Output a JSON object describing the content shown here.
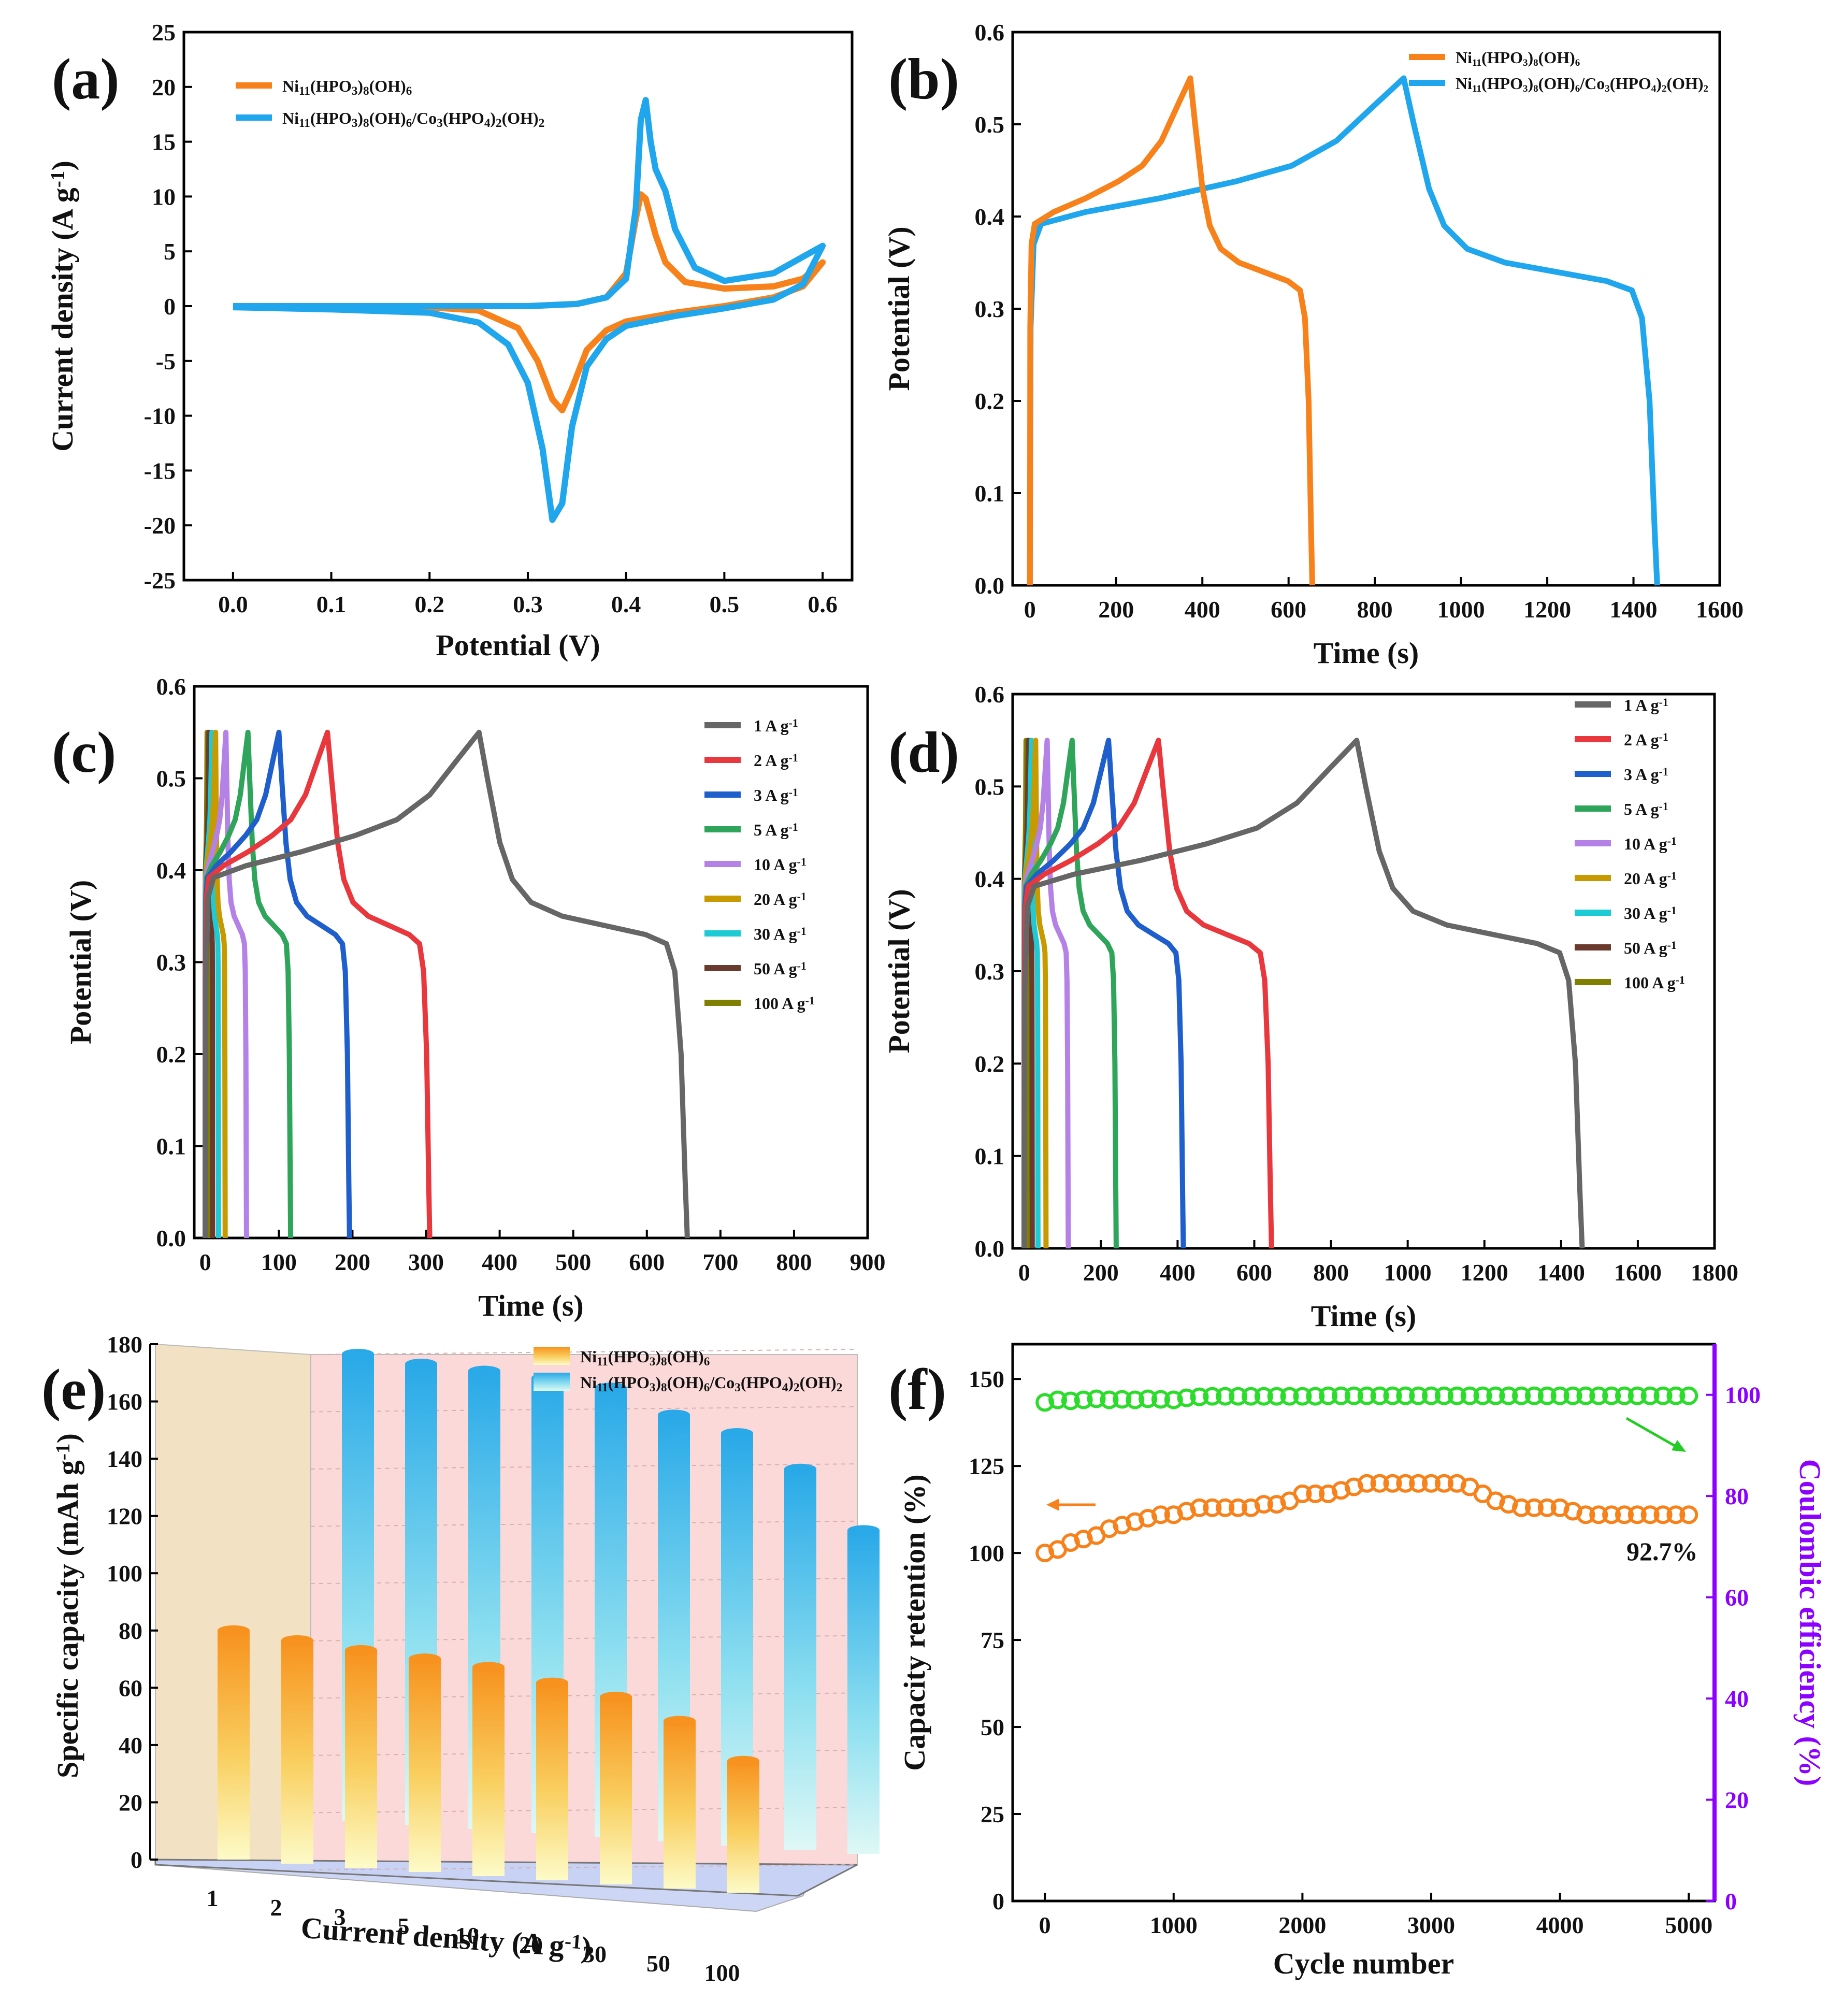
{
  "figure": {
    "panels": [
      {
        "id": "a",
        "label": "(a)"
      },
      {
        "id": "b",
        "label": "(b)"
      },
      {
        "id": "c",
        "label": "(c)"
      },
      {
        "id": "d",
        "label": "(d)"
      },
      {
        "id": "e",
        "label": "(e)"
      },
      {
        "id": "f",
        "label": "(f)"
      }
    ]
  },
  "chart_data": [
    {
      "panel": "a",
      "type": "line",
      "title": "",
      "xlabel": "Potential (V)",
      "ylabel": "Current density (A g⁻¹)",
      "xlim": [
        -0.05,
        0.63
      ],
      "ylim": [
        -25,
        25
      ],
      "xticks": [
        0.0,
        0.1,
        0.2,
        0.3,
        0.4,
        0.5,
        0.6
      ],
      "xtick_labels": [
        "0.0",
        "0.1",
        "0.2",
        "0.3",
        "0.4",
        "0.5",
        "0.6"
      ],
      "yticks": [
        -25,
        -20,
        -15,
        -10,
        -5,
        0,
        5,
        10,
        15,
        20,
        25
      ],
      "ytick_labels": [
        "-25",
        "-20",
        "-15",
        "-10",
        "-5",
        "0",
        "5",
        "10",
        "15",
        "20",
        "25"
      ],
      "legend": "top-left",
      "series": [
        {
          "name": "Ni₁₁(HPO₃)₈(OH)₆",
          "color": "#f7821b",
          "x": [
            0.0,
            0.1,
            0.2,
            0.25,
            0.29,
            0.31,
            0.325,
            0.335,
            0.345,
            0.36,
            0.38,
            0.4,
            0.45,
            0.5,
            0.55,
            0.58,
            0.6,
            0.58,
            0.55,
            0.5,
            0.46,
            0.44,
            0.43,
            0.42,
            0.415,
            0.41,
            0.4,
            0.38,
            0.35,
            0.3,
            0.25,
            0.2,
            0.1,
            0.0
          ],
          "y": [
            0,
            0,
            -0.1,
            -0.4,
            -2.0,
            -5.0,
            -8.5,
            -9.5,
            -7.5,
            -4.0,
            -2.2,
            -1.4,
            -0.6,
            0.0,
            0.8,
            1.8,
            4.0,
            2.5,
            1.8,
            1.6,
            2.2,
            4.0,
            6.5,
            9.8,
            10.2,
            8.0,
            3.0,
            0.8,
            0.2,
            0.0,
            0.0,
            0.0,
            0.0,
            0.0
          ]
        },
        {
          "name": "Ni₁₁(HPO₃)₈(OH)₆/Co₃(HPO₄)₂(OH)₂",
          "color": "#1fa6ec",
          "x": [
            0.0,
            0.1,
            0.2,
            0.25,
            0.28,
            0.3,
            0.315,
            0.325,
            0.335,
            0.345,
            0.36,
            0.38,
            0.4,
            0.45,
            0.5,
            0.55,
            0.58,
            0.6,
            0.58,
            0.55,
            0.5,
            0.47,
            0.45,
            0.44,
            0.43,
            0.425,
            0.42,
            0.415,
            0.41,
            0.4,
            0.38,
            0.35,
            0.3,
            0.25,
            0.2,
            0.1,
            0.0
          ],
          "y": [
            -0.1,
            -0.3,
            -0.6,
            -1.5,
            -3.5,
            -7.0,
            -13.0,
            -19.5,
            -18.0,
            -11.0,
            -5.5,
            -3.0,
            -1.8,
            -0.9,
            -0.2,
            0.6,
            2.0,
            5.5,
            4.5,
            3.0,
            2.3,
            3.5,
            7.0,
            10.5,
            12.5,
            15.0,
            18.8,
            17.0,
            9.0,
            2.5,
            0.8,
            0.2,
            0.0,
            0.0,
            0.0,
            0.0,
            0.0
          ]
        }
      ]
    },
    {
      "panel": "b",
      "type": "line",
      "title": "",
      "xlabel": "Time (s)",
      "ylabel": "Potential (V)",
      "xlim": [
        -40,
        1600
      ],
      "ylim": [
        0,
        0.6
      ],
      "xticks": [
        0,
        200,
        400,
        600,
        800,
        1000,
        1200,
        1400,
        1600
      ],
      "xtick_labels": [
        "0",
        "200",
        "400",
        "600",
        "800",
        "1000",
        "1200",
        "1400",
        "1600"
      ],
      "yticks": [
        0.0,
        0.1,
        0.2,
        0.3,
        0.4,
        0.5,
        0.6
      ],
      "ytick_labels": [
        "0.0",
        "0.1",
        "0.2",
        "0.3",
        "0.4",
        "0.5",
        "0.6"
      ],
      "legend": "top-right",
      "series": [
        {
          "name": "Ni₁₁(HPO₃)₈(OH)₆",
          "color": "#f7821b",
          "charge_end": 372,
          "discharge_end": 655
        },
        {
          "name": "Ni₁₁(HPO₃)₈(OH)₆/Co₃(HPO₄)₂(OH)₂",
          "color": "#1fa6ec",
          "charge_end": 867,
          "discharge_end": 1455
        }
      ]
    },
    {
      "panel": "c",
      "type": "line",
      "title": "",
      "xlabel": "Time (s)",
      "ylabel": "Potential (V)",
      "xlim": [
        -15,
        900
      ],
      "ylim": [
        0,
        0.6
      ],
      "xticks": [
        0,
        100,
        200,
        300,
        400,
        500,
        600,
        700,
        800,
        900
      ],
      "xtick_labels": [
        "0",
        "100",
        "200",
        "300",
        "400",
        "500",
        "600",
        "700",
        "800",
        "900"
      ],
      "yticks": [
        0.0,
        0.1,
        0.2,
        0.3,
        0.4,
        0.5,
        0.6
      ],
      "ytick_labels": [
        "0.0",
        "0.1",
        "0.2",
        "0.3",
        "0.4",
        "0.5",
        "0.6"
      ],
      "legend": "top-right",
      "series": [
        {
          "name": "1 A g⁻¹",
          "color": "#666666",
          "charge_end": 372,
          "discharge_end": 655
        },
        {
          "name": "2 A g⁻¹",
          "color": "#e8383d",
          "charge_end": 166,
          "discharge_end": 305
        },
        {
          "name": "3 A g⁻¹",
          "color": "#1f5fcc",
          "charge_end": 100,
          "discharge_end": 196
        },
        {
          "name": "5 A g⁻¹",
          "color": "#2ea55a",
          "charge_end": 58,
          "discharge_end": 116
        },
        {
          "name": "10 A g⁻¹",
          "color": "#b482e6",
          "charge_end": 28,
          "discharge_end": 56
        },
        {
          "name": "20 A g⁻¹",
          "color": "#c79a00",
          "charge_end": 14,
          "discharge_end": 27
        },
        {
          "name": "30 A g⁻¹",
          "color": "#1ecbd4",
          "charge_end": 9,
          "discharge_end": 18
        },
        {
          "name": "50 A g⁻¹",
          "color": "#6b3a2e",
          "charge_end": 5,
          "discharge_end": 10
        },
        {
          "name": "100 A g⁻¹",
          "color": "#808000",
          "charge_end": 2.5,
          "discharge_end": 4.5
        }
      ]
    },
    {
      "panel": "d",
      "type": "line",
      "title": "",
      "xlabel": "Time (s)",
      "ylabel": "Potential (V)",
      "xlim": [
        -30,
        1800
      ],
      "ylim": [
        0,
        0.6
      ],
      "xticks": [
        0,
        200,
        400,
        600,
        800,
        1000,
        1200,
        1400,
        1600,
        1800
      ],
      "xtick_labels": [
        "0",
        "200",
        "400",
        "600",
        "800",
        "1000",
        "1200",
        "1400",
        "1600",
        "1800"
      ],
      "yticks": [
        0.0,
        0.1,
        0.2,
        0.3,
        0.4,
        0.5,
        0.6
      ],
      "ytick_labels": [
        "0.0",
        "0.1",
        "0.2",
        "0.3",
        "0.4",
        "0.5",
        "0.6"
      ],
      "legend": "top-right",
      "series": [
        {
          "name": "1 A g⁻¹",
          "color": "#666666",
          "charge_end": 867,
          "discharge_end": 1455
        },
        {
          "name": "2 A g⁻¹",
          "color": "#e8383d",
          "charge_end": 350,
          "discharge_end": 645
        },
        {
          "name": "3 A g⁻¹",
          "color": "#1f5fcc",
          "charge_end": 220,
          "discharge_end": 415
        },
        {
          "name": "5 A g⁻¹",
          "color": "#2ea55a",
          "charge_end": 125,
          "discharge_end": 240
        },
        {
          "name": "10 A g⁻¹",
          "color": "#b482e6",
          "charge_end": 60,
          "discharge_end": 115
        },
        {
          "name": "20 A g⁻¹",
          "color": "#c79a00",
          "charge_end": 30,
          "discharge_end": 57
        },
        {
          "name": "30 A g⁻¹",
          "color": "#1ecbd4",
          "charge_end": 19,
          "discharge_end": 36
        },
        {
          "name": "50 A g⁻¹",
          "color": "#6b3a2e",
          "charge_end": 11,
          "discharge_end": 21
        },
        {
          "name": "100 A g⁻¹",
          "color": "#808000",
          "charge_end": 5,
          "discharge_end": 10
        }
      ]
    },
    {
      "panel": "e",
      "type": "bar",
      "title": "",
      "xlabel": "Current density (A g⁻¹)",
      "ylabel": "Specific capacity (mAh g⁻¹)",
      "ylim": [
        0,
        180
      ],
      "yticks": [
        0,
        20,
        40,
        60,
        80,
        100,
        120,
        140,
        160,
        180
      ],
      "ytick_labels": [
        "0",
        "20",
        "40",
        "60",
        "80",
        "100",
        "120",
        "140",
        "160",
        "180"
      ],
      "categories": [
        "1",
        "2",
        "3",
        "5",
        "10",
        "20",
        "30",
        "50",
        "100"
      ],
      "legend": "top-right",
      "series": [
        {
          "name": "Ni₁₁(HPO₃)₈(OH)₆",
          "color": "#f7921e",
          "values": [
            80,
            78,
            76,
            74.5,
            73,
            69,
            65.5,
            58.5,
            46
          ]
        },
        {
          "name": "Ni₁₁(HPO₃)₈(OH)₆/Co₃(HPO₄)₂(OH)₂",
          "color": "#29a9e8",
          "values": [
            163,
            161,
            160,
            159,
            157,
            149,
            144,
            133,
            113
          ]
        }
      ]
    },
    {
      "panel": "f",
      "type": "scatter",
      "title": "",
      "xlabel": "Cycle number",
      "ylabel": "Capacity retention (%)",
      "y2label": "Coulombic efficiency (%)",
      "xlim": [
        -250,
        5200
      ],
      "ylim": [
        0,
        160
      ],
      "y2lim": [
        0,
        110
      ],
      "xticks": [
        0,
        1000,
        2000,
        3000,
        4000,
        5000
      ],
      "xtick_labels": [
        "0",
        "1000",
        "2000",
        "3000",
        "4000",
        "5000"
      ],
      "yticks": [
        0,
        25,
        50,
        75,
        100,
        125,
        150
      ],
      "ytick_labels": [
        "0",
        "25",
        "50",
        "75",
        "100",
        "125",
        "150"
      ],
      "y2ticks": [
        0,
        20,
        40,
        60,
        80,
        100
      ],
      "y2tick_labels": [
        "0",
        "20",
        "40",
        "60",
        "80",
        "100"
      ],
      "annotation": "92.7%",
      "series": [
        {
          "name": "Capacity retention",
          "axis": "left",
          "color": "#f7821b",
          "x": [
            0,
            100,
            200,
            300,
            400,
            500,
            600,
            700,
            800,
            900,
            1000,
            1100,
            1200,
            1300,
            1400,
            1500,
            1600,
            1700,
            1800,
            1900,
            2000,
            2100,
            2200,
            2300,
            2400,
            2500,
            2600,
            2700,
            2800,
            2900,
            3000,
            3100,
            3200,
            3300,
            3400,
            3500,
            3600,
            3700,
            3800,
            3900,
            4000,
            4100,
            4200,
            4300,
            4400,
            4500,
            4600,
            4700,
            4800,
            4900,
            5000
          ],
          "y": [
            100,
            101,
            103,
            104,
            105,
            107,
            108,
            109,
            110,
            111,
            111,
            112,
            113,
            113,
            113,
            113,
            113,
            114,
            114,
            115,
            117,
            117,
            117,
            118,
            119,
            120,
            120,
            120,
            120,
            120,
            120,
            120,
            120,
            119,
            117,
            115,
            114,
            113,
            113,
            113,
            113,
            112,
            111,
            111,
            111,
            111,
            111,
            111,
            111,
            111,
            111
          ]
        },
        {
          "name": "Coulombic efficiency",
          "axis": "right",
          "color": "#2bdc2b",
          "x": [
            0,
            100,
            200,
            300,
            400,
            500,
            600,
            700,
            800,
            900,
            1000,
            1100,
            1200,
            1300,
            1400,
            1500,
            1600,
            1700,
            1800,
            1900,
            2000,
            2100,
            2200,
            2300,
            2400,
            2500,
            2600,
            2700,
            2800,
            2900,
            3000,
            3100,
            3200,
            3300,
            3400,
            3500,
            3600,
            3700,
            3800,
            3900,
            4000,
            4100,
            4200,
            4300,
            4400,
            4500,
            4600,
            4700,
            4800,
            4900,
            5000
          ],
          "y": [
            98.5,
            99,
            98.8,
            99,
            99.2,
            99,
            99.1,
            99,
            99.2,
            99.1,
            99,
            99.4,
            99.6,
            99.7,
            99.7,
            99.7,
            99.7,
            99.7,
            99.7,
            99.7,
            99.7,
            99.7,
            99.8,
            99.8,
            99.8,
            99.8,
            99.8,
            99.8,
            99.8,
            99.8,
            99.8,
            99.8,
            99.8,
            99.8,
            99.8,
            99.8,
            99.8,
            99.8,
            99.8,
            99.8,
            99.8,
            99.8,
            99.8,
            99.8,
            99.8,
            99.8,
            99.8,
            99.8,
            99.8,
            99.8,
            99.8
          ]
        }
      ]
    }
  ]
}
